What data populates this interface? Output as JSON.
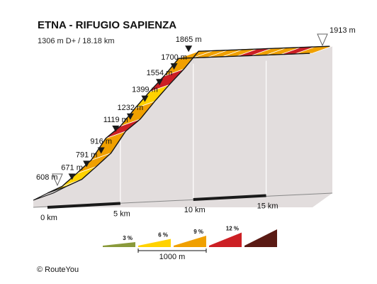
{
  "chart_data": {
    "type": "area",
    "title": "ETNA - RIFUGIO SAPIENZA",
    "subtitle": "1306 m D+ / 18.18 km",
    "x_unit": "km",
    "y_unit": "m",
    "distance_km": 18.18,
    "xlim": [
      0,
      18.18
    ],
    "ylim": [
      550,
      1950
    ],
    "elevation_labels": [
      "608 m",
      "671 m",
      "791 m",
      "916 m",
      "1119 m",
      "1232 m",
      "1399 m",
      "1554 m",
      "1700 m",
      "1865 m",
      "1913 m"
    ],
    "points": [
      {
        "km": 0,
        "elevation": 608,
        "marker": "start"
      },
      {
        "km": 1,
        "elevation": 671,
        "marker": "km"
      },
      {
        "km": 2,
        "elevation": 791,
        "marker": "km"
      },
      {
        "km": 3,
        "elevation": 916,
        "marker": "km"
      },
      {
        "km": 4,
        "elevation": 1119,
        "marker": "km"
      },
      {
        "km": 5,
        "elevation": 1232,
        "marker": "km"
      },
      {
        "km": 6,
        "elevation": 1399,
        "marker": "km"
      },
      {
        "km": 7,
        "elevation": 1554,
        "marker": "km"
      },
      {
        "km": 8,
        "elevation": 1700,
        "marker": "km"
      },
      {
        "km": 9,
        "elevation": 1865,
        "marker": "km"
      },
      {
        "km": 18.18,
        "elevation": 1913,
        "marker": "end"
      }
    ],
    "segments": [
      {
        "from_km": 0,
        "to_km": 1,
        "grade_class": "6"
      },
      {
        "from_km": 1,
        "to_km": 2,
        "grade_class": "6"
      },
      {
        "from_km": 2,
        "to_km": 3,
        "grade_class": "9"
      },
      {
        "from_km": 3,
        "to_km": 4,
        "grade_class": "9"
      },
      {
        "from_km": 4,
        "to_km": 5,
        "grade_class": "12"
      },
      {
        "from_km": 5,
        "to_km": 6,
        "grade_class": "9"
      },
      {
        "from_km": 6,
        "to_km": 7,
        "grade_class": "6"
      },
      {
        "from_km": 7,
        "to_km": 8,
        "grade_class": "12"
      },
      {
        "from_km": 8,
        "to_km": 9,
        "grade_class": "9"
      },
      {
        "from_km": 9,
        "to_km": 10,
        "grade_class": "9"
      },
      {
        "from_km": 10,
        "to_km": 11,
        "grade_class": "9"
      },
      {
        "from_km": 11,
        "to_km": 12,
        "grade_class": "9"
      },
      {
        "from_km": 12,
        "to_km": 13,
        "grade_class": "9"
      },
      {
        "from_km": 13,
        "to_km": 14,
        "grade_class": "12"
      },
      {
        "from_km": 14,
        "to_km": 15,
        "grade_class": "9"
      },
      {
        "from_km": 15,
        "to_km": 16,
        "grade_class": "9"
      },
      {
        "from_km": 16,
        "to_km": 17,
        "grade_class": "12"
      },
      {
        "from_km": 17,
        "to_km": 18.18,
        "grade_class": "9"
      }
    ],
    "x_ticks": [
      {
        "km": 0,
        "label": "0 km"
      },
      {
        "km": 5,
        "label": "5 km"
      },
      {
        "km": 10,
        "label": "10 km"
      },
      {
        "km": 15,
        "label": "15 km"
      }
    ],
    "legend": {
      "scale_label": "1000 m",
      "items": [
        {
          "key": "3",
          "label": "3 %",
          "color": "#8a9a3b"
        },
        {
          "key": "6",
          "label": "6 %",
          "color": "#ffd200"
        },
        {
          "key": "9",
          "label": "9 %",
          "color": "#f0a000"
        },
        {
          "key": "12",
          "label": "12 %",
          "color": "#cc1f24"
        },
        {
          "key": "15",
          "label": "",
          "color": "#5a1a14"
        }
      ]
    },
    "colors": {
      "side_face": "#e2dddd",
      "baseline_dark": "#1a1a1a",
      "edge_stroke": "#151515",
      "marker_fill": "#1a1a1a",
      "marker_outline": "#666666"
    }
  },
  "copyright": "© RouteYou"
}
